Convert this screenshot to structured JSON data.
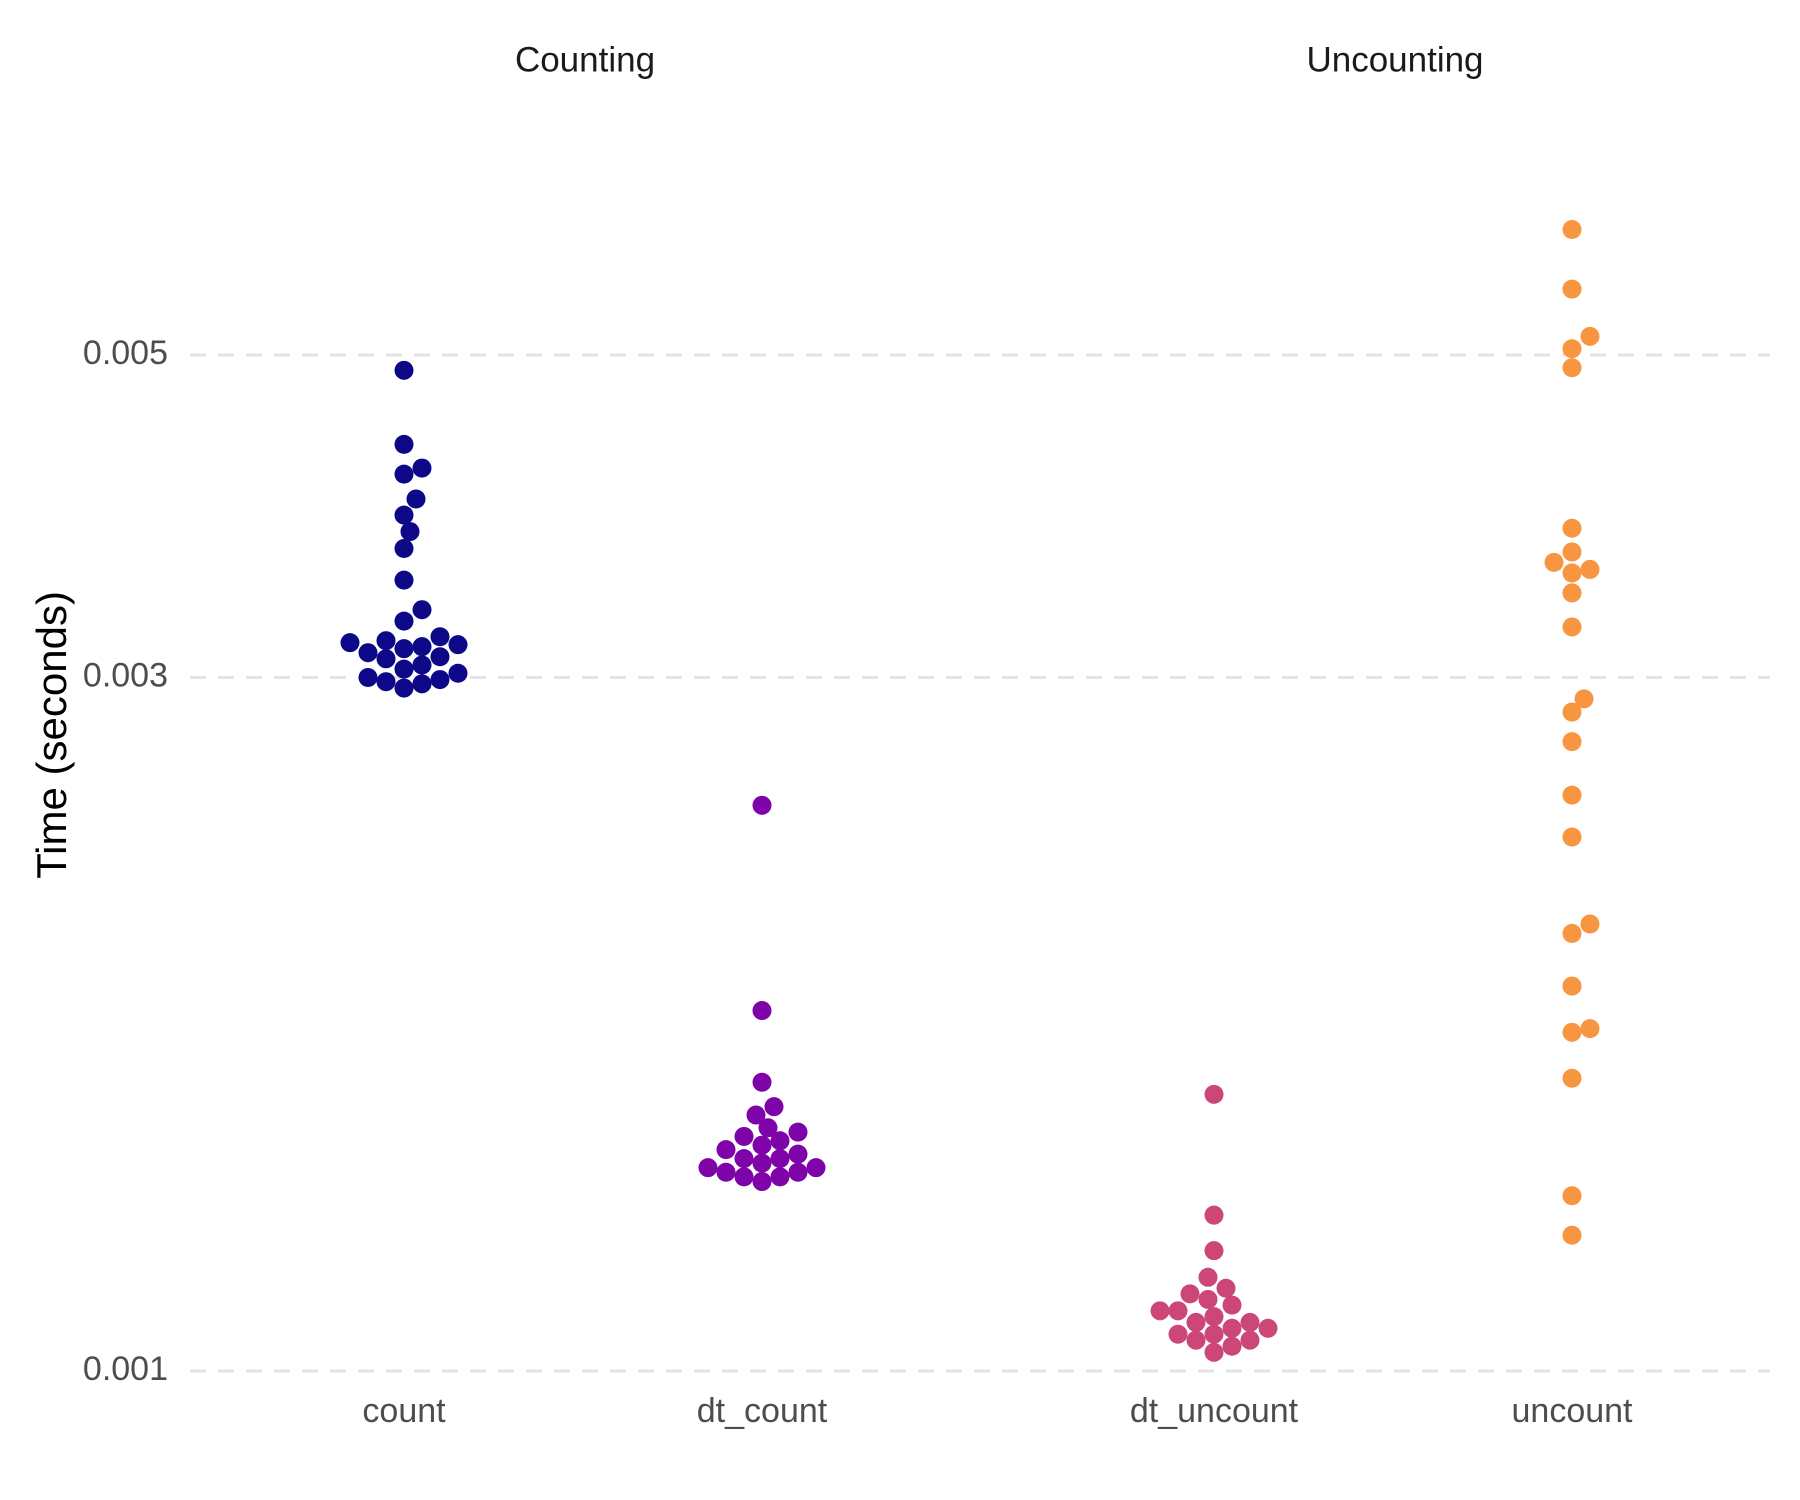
{
  "chart_data": {
    "type": "scatter",
    "subtype": "beeswarm",
    "ylabel": "Time (seconds)",
    "y_scale": "log10",
    "ylim": [
      0.001,
      0.0061
    ],
    "yticks": [
      0.001,
      0.003,
      0.005
    ],
    "ytick_labels": [
      "0.001",
      "0.003",
      "0.005"
    ],
    "grid": "horizontal-dashed",
    "legend": "none",
    "panels": [
      {
        "title": "Counting",
        "categories": [
          "count",
          "dt_count"
        ],
        "series": [
          {
            "category": "count",
            "color": "#0d0887",
            "values": [
              0.00488,
              0.00434,
              0.00418,
              0.00414,
              0.00398,
              0.00388,
              0.00378,
              0.00368,
              0.0035,
              0.00334,
              0.00328,
              0.0032,
              0.00318,
              0.00317,
              0.00316,
              0.00315,
              0.00314,
              0.00312,
              0.0031,
              0.00309,
              0.00306,
              0.00304,
              0.00302,
              0.003,
              0.00299,
              0.00298,
              0.00297,
              0.00295
            ]
          },
          {
            "category": "dt_count",
            "color": "#7e03a8",
            "values": [
              0.00245,
              0.00177,
              0.00158,
              0.00152,
              0.0015,
              0.00147,
              0.00146,
              0.00145,
              0.00144,
              0.00143,
              0.00142,
              0.00141,
              0.0014,
              0.0014,
              0.00139,
              0.00138,
              0.00138,
              0.00137,
              0.00137,
              0.00136,
              0.00136,
              0.00135
            ]
          }
        ]
      },
      {
        "title": "Uncounting",
        "categories": [
          "dt_uncount",
          "uncount"
        ],
        "series": [
          {
            "category": "dt_uncount",
            "color": "#cc4778",
            "values": [
              0.00155,
              0.00128,
              0.00121,
              0.00116,
              0.00114,
              0.00113,
              0.00112,
              0.00111,
              0.0011,
              0.0011,
              0.00109,
              0.00108,
              0.00108,
              0.00107,
              0.00107,
              0.00106,
              0.00106,
              0.00105,
              0.00105,
              0.00104,
              0.00103
            ]
          },
          {
            "category": "uncount",
            "color": "#f89540",
            "values": [
              0.0061,
              0.00555,
              0.00515,
              0.00505,
              0.0049,
              0.0038,
              0.00366,
              0.0036,
              0.00356,
              0.00354,
              0.00343,
              0.00325,
              0.0029,
              0.00284,
              0.00271,
              0.00249,
              0.00233,
              0.00203,
              0.002,
              0.00184,
              0.00172,
              0.00171,
              0.00159,
              0.00132,
              0.00124
            ]
          }
        ]
      }
    ]
  }
}
